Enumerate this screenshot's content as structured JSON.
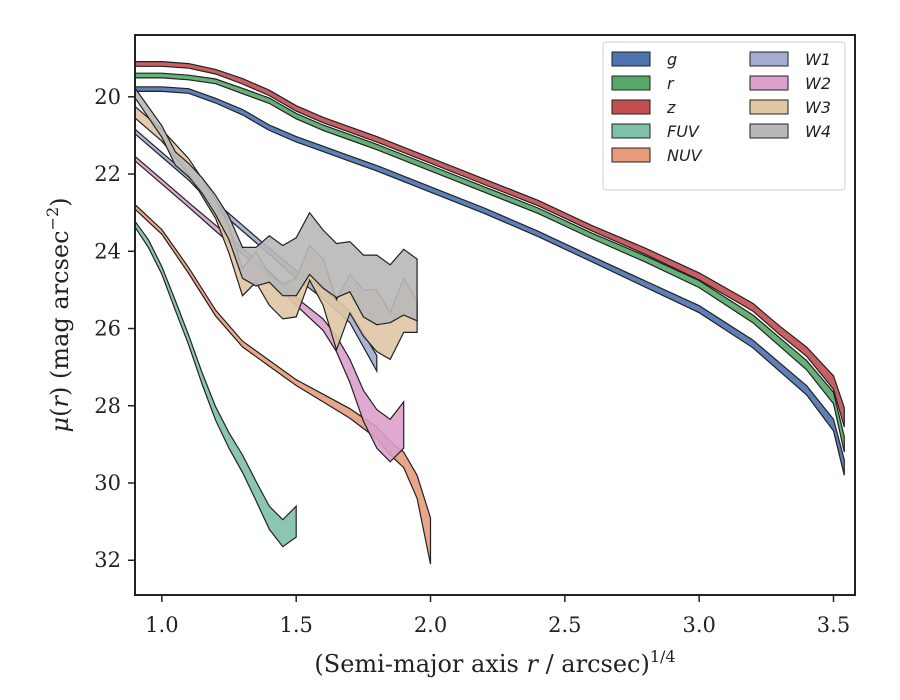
{
  "chart_data": {
    "type": "area",
    "xlabel": "(Semi-major axis r / arcsec)^1/4",
    "ylabel": "μ(r) (mag arcsec^−2)",
    "xlim": [
      0.9,
      3.58
    ],
    "ylim": [
      32.9,
      18.4
    ],
    "y_inverted": true,
    "x_ticks": [
      1.0,
      1.5,
      2.0,
      2.5,
      3.0,
      3.5
    ],
    "x_tick_labels": [
      "1.0",
      "1.5",
      "2.0",
      "2.5",
      "3.0",
      "3.5"
    ],
    "y_ticks": [
      20,
      22,
      24,
      26,
      28,
      30,
      32
    ],
    "y_tick_labels": [
      "20",
      "22",
      "24",
      "26",
      "28",
      "30",
      "32"
    ],
    "grid": false,
    "legend": {
      "position": "top-right",
      "columns": 2
    },
    "series": [
      {
        "name": "g",
        "color": "#4c72b0",
        "x": [
          0.9,
          1.0,
          1.1,
          1.2,
          1.3,
          1.4,
          1.5,
          1.6,
          1.7,
          1.8,
          2.0,
          2.2,
          2.4,
          2.6,
          2.8,
          3.0,
          3.2,
          3.3,
          3.4,
          3.5,
          3.54
        ],
        "y": [
          19.8,
          19.8,
          19.85,
          20.1,
          20.4,
          20.8,
          21.1,
          21.35,
          21.6,
          21.85,
          22.4,
          22.95,
          23.55,
          24.2,
          24.85,
          25.5,
          26.4,
          27.0,
          27.6,
          28.5,
          29.6
        ],
        "width": [
          0.12,
          0.12,
          0.12,
          0.12,
          0.14,
          0.14,
          0.14,
          0.14,
          0.14,
          0.14,
          0.14,
          0.14,
          0.14,
          0.14,
          0.16,
          0.18,
          0.2,
          0.22,
          0.24,
          0.3,
          0.4
        ]
      },
      {
        "name": "r",
        "color": "#55a868",
        "x": [
          0.9,
          1.0,
          1.1,
          1.2,
          1.3,
          1.4,
          1.5,
          1.6,
          1.7,
          1.8,
          2.0,
          2.2,
          2.4,
          2.6,
          2.8,
          3.0,
          3.2,
          3.3,
          3.4,
          3.5,
          3.54
        ],
        "y": [
          19.45,
          19.45,
          19.5,
          19.6,
          19.85,
          20.1,
          20.5,
          20.8,
          21.05,
          21.3,
          21.85,
          22.4,
          22.95,
          23.6,
          24.2,
          24.85,
          25.75,
          26.35,
          26.95,
          27.8,
          29.0
        ],
        "width": [
          0.12,
          0.12,
          0.12,
          0.12,
          0.14,
          0.14,
          0.14,
          0.14,
          0.14,
          0.14,
          0.14,
          0.14,
          0.14,
          0.14,
          0.16,
          0.18,
          0.2,
          0.22,
          0.24,
          0.3,
          0.4
        ]
      },
      {
        "name": "z",
        "color": "#c44e52",
        "x": [
          0.9,
          1.0,
          1.1,
          1.2,
          1.3,
          1.4,
          1.5,
          1.6,
          1.7,
          1.8,
          2.0,
          2.2,
          2.4,
          2.6,
          2.8,
          3.0,
          3.2,
          3.3,
          3.4,
          3.5,
          3.54
        ],
        "y": [
          19.15,
          19.15,
          19.2,
          19.35,
          19.6,
          19.9,
          20.3,
          20.6,
          20.85,
          21.1,
          21.65,
          22.2,
          22.75,
          23.4,
          24.0,
          24.65,
          25.45,
          26.05,
          26.6,
          27.4,
          28.3
        ],
        "width": [
          0.12,
          0.12,
          0.12,
          0.12,
          0.14,
          0.14,
          0.14,
          0.14,
          0.14,
          0.14,
          0.14,
          0.14,
          0.14,
          0.14,
          0.16,
          0.18,
          0.2,
          0.22,
          0.24,
          0.35,
          0.5
        ]
      },
      {
        "name": "FUV",
        "color": "#7ec0aa",
        "x": [
          0.9,
          0.95,
          1.0,
          1.05,
          1.1,
          1.15,
          1.2,
          1.25,
          1.3,
          1.35,
          1.4,
          1.45,
          1.5
        ],
        "y": [
          23.3,
          23.8,
          24.5,
          25.4,
          26.3,
          27.3,
          28.2,
          28.9,
          29.5,
          30.2,
          30.9,
          31.3,
          31.0
        ],
        "width": [
          0.15,
          0.2,
          0.2,
          0.25,
          0.25,
          0.3,
          0.35,
          0.4,
          0.45,
          0.5,
          0.6,
          0.7,
          0.8
        ]
      },
      {
        "name": "NUV",
        "color": "#e89c7c",
        "x": [
          0.9,
          1.0,
          1.1,
          1.2,
          1.3,
          1.4,
          1.5,
          1.6,
          1.7,
          1.8,
          1.85,
          1.9,
          1.95,
          2.0
        ],
        "y": [
          22.85,
          23.5,
          24.5,
          25.6,
          26.4,
          26.9,
          27.4,
          27.8,
          28.2,
          28.7,
          29.1,
          29.4,
          30.1,
          31.5
        ],
        "width": [
          0.12,
          0.12,
          0.15,
          0.15,
          0.15,
          0.15,
          0.15,
          0.2,
          0.25,
          0.3,
          0.35,
          0.4,
          0.6,
          1.2
        ]
      },
      {
        "name": "W1",
        "color": "#a3acd1",
        "x": [
          0.9,
          1.0,
          1.1,
          1.2,
          1.3,
          1.4,
          1.5,
          1.6,
          1.7,
          1.75,
          1.8
        ],
        "y": [
          20.9,
          21.5,
          22.1,
          22.8,
          23.4,
          24.0,
          24.6,
          25.1,
          25.7,
          26.3,
          26.9
        ],
        "width": [
          0.12,
          0.12,
          0.12,
          0.15,
          0.15,
          0.15,
          0.2,
          0.25,
          0.3,
          0.35,
          0.4
        ]
      },
      {
        "name": "W2",
        "color": "#dca0cc",
        "x": [
          0.9,
          1.0,
          1.1,
          1.2,
          1.3,
          1.4,
          1.5,
          1.6,
          1.65,
          1.7,
          1.75,
          1.8,
          1.85,
          1.9
        ],
        "y": [
          21.6,
          22.2,
          22.8,
          23.4,
          24.0,
          24.6,
          25.3,
          25.9,
          26.4,
          27.1,
          28.0,
          28.6,
          28.9,
          28.5
        ],
        "width": [
          0.12,
          0.12,
          0.12,
          0.15,
          0.15,
          0.15,
          0.2,
          0.3,
          0.4,
          0.6,
          0.8,
          1.0,
          1.1,
          1.2
        ]
      },
      {
        "name": "W3",
        "color": "#e0c7a4",
        "x": [
          0.9,
          1.0,
          1.1,
          1.2,
          1.25,
          1.3,
          1.35,
          1.4,
          1.45,
          1.5,
          1.55,
          1.6,
          1.65,
          1.7,
          1.75,
          1.8,
          1.85,
          1.9,
          1.95
        ],
        "y": [
          20.4,
          21.0,
          21.8,
          22.9,
          23.7,
          24.8,
          24.4,
          25.0,
          25.3,
          25.2,
          24.3,
          24.8,
          25.9,
          25.1,
          25.6,
          25.8,
          26.2,
          25.4,
          25.7
        ],
        "width": [
          0.3,
          0.3,
          0.4,
          0.5,
          0.7,
          0.7,
          0.8,
          0.8,
          0.9,
          1.0,
          0.9,
          1.2,
          1.3,
          1.0,
          1.2,
          1.6,
          1.2,
          1.4,
          0.8
        ]
      },
      {
        "name": "W4",
        "color": "#b8b8b8",
        "x": [
          0.9,
          1.0,
          1.05,
          1.1,
          1.15,
          1.2,
          1.25,
          1.3,
          1.35,
          1.4,
          1.45,
          1.5,
          1.55,
          1.6,
          1.65,
          1.7,
          1.75,
          1.8,
          1.85,
          1.9,
          1.95
        ],
        "y": [
          19.9,
          20.9,
          21.6,
          21.9,
          22.3,
          22.8,
          23.4,
          24.3,
          24.4,
          24.2,
          24.5,
          24.4,
          23.8,
          24.2,
          24.5,
          24.4,
          24.9,
          25.0,
          25.1,
          24.8,
          25.0
        ],
        "width": [
          0.25,
          0.3,
          0.35,
          0.35,
          0.4,
          0.5,
          0.6,
          0.8,
          1.0,
          1.2,
          1.3,
          1.5,
          1.6,
          1.5,
          1.4,
          1.3,
          1.6,
          1.8,
          1.5,
          1.7,
          1.6
        ]
      }
    ]
  }
}
